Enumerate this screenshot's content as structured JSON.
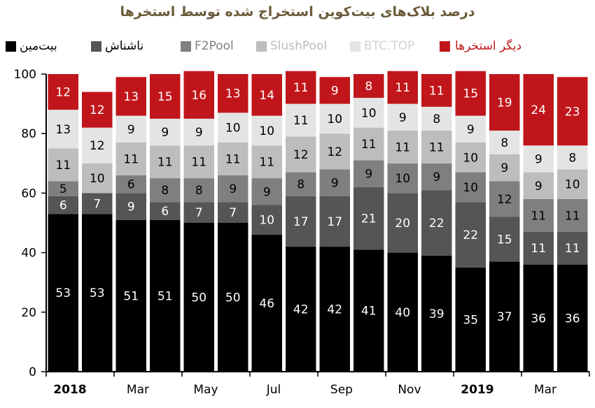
{
  "chart_data": {
    "type": "bar",
    "stacked": true,
    "title": "درصد بلاک‌های بیت‌کوین استخراج شده توسط استخرها",
    "ylim": [
      0,
      100
    ],
    "yticks": [
      0,
      20,
      40,
      60,
      80,
      100
    ],
    "xtick_labels": [
      {
        "index": 0,
        "label": "2018",
        "bold": true
      },
      {
        "index": 2,
        "label": "Mar",
        "bold": false
      },
      {
        "index": 4,
        "label": "May",
        "bold": false
      },
      {
        "index": 6,
        "label": "Jul",
        "bold": false
      },
      {
        "index": 8,
        "label": "Sep",
        "bold": false
      },
      {
        "index": 10,
        "label": "Nov",
        "bold": false
      },
      {
        "index": 12,
        "label": "2019",
        "bold": true
      },
      {
        "index": 14,
        "label": "Mar",
        "bold": false
      }
    ],
    "series": [
      {
        "name": "بیت‌مین",
        "color": "#000000",
        "label_color": "#ffffff",
        "values": [
          53,
          53,
          51,
          51,
          50,
          50,
          46,
          42,
          42,
          41,
          40,
          39,
          35,
          37,
          36,
          36
        ]
      },
      {
        "name": "ناشناش",
        "color": "#555555",
        "label_color": "#ffffff",
        "values": [
          6,
          7,
          9,
          6,
          7,
          7,
          10,
          17,
          17,
          21,
          20,
          22,
          22,
          15,
          11,
          11
        ]
      },
      {
        "name": "F2Pool",
        "color": "#7f7f7f",
        "label_color": "#000000",
        "values": [
          5,
          null,
          6,
          8,
          8,
          9,
          9,
          8,
          9,
          9,
          10,
          9,
          10,
          12,
          11,
          11
        ]
      },
      {
        "name": "SlushPool",
        "color": "#bdbdbd",
        "label_color": "#000000",
        "values": [
          11,
          10,
          11,
          11,
          11,
          11,
          11,
          12,
          12,
          11,
          11,
          11,
          10,
          9,
          9,
          10
        ]
      },
      {
        "name": "BTC.TOP",
        "color": "#e4e4e4",
        "label_color": "#000000",
        "values": [
          13,
          12,
          9,
          9,
          9,
          10,
          10,
          11,
          10,
          10,
          9,
          8,
          9,
          8,
          9,
          8
        ]
      },
      {
        "name": "دیگر استخرها",
        "color": "#c0161b",
        "label_color": "#ffffff",
        "values": [
          12,
          12,
          13,
          15,
          16,
          13,
          14,
          11,
          9,
          8,
          11,
          11,
          15,
          19,
          24,
          23
        ]
      }
    ],
    "grid": false,
    "legend_position": "top"
  }
}
